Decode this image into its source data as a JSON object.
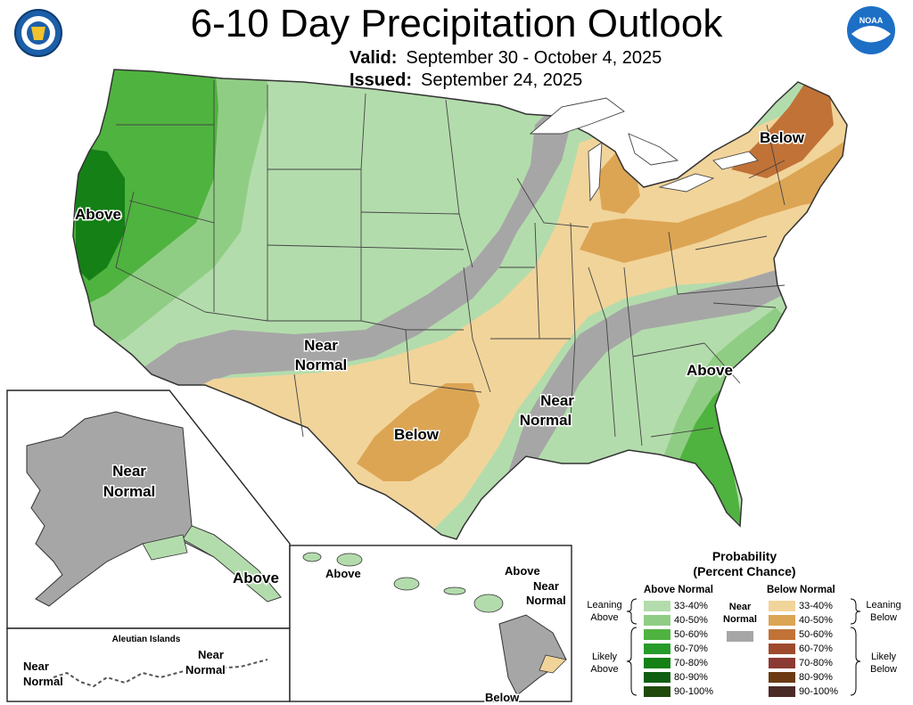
{
  "title": "6-10 Day Precipitation Outlook",
  "valid_label": "Valid:",
  "valid_value": "September 30 - October 4, 2025",
  "issued_label": "Issued:",
  "issued_value": "September 24, 2025",
  "logos": {
    "left": "doc-seal-icon",
    "right": "noaa-logo-icon",
    "noaa_text": "NOAA"
  },
  "regions": {
    "west_coast": "Above",
    "northeast": "Below",
    "southwest_near": [
      "Near",
      "Normal"
    ],
    "texas": "Below",
    "lower_miss_near": [
      "Near",
      "Normal"
    ],
    "southeast": "Above",
    "alaska_near": [
      "Near",
      "Normal"
    ],
    "alaska_se": "Above",
    "aleutian_title": "Aleutian Islands",
    "aleutian_near_left": [
      "Near",
      "Normal"
    ],
    "aleutian_near_right": [
      "Near",
      "Normal"
    ],
    "hawaii_above_w": "Above",
    "hawaii_above_e": "Above",
    "hawaii_near": [
      "Near",
      "Normal"
    ],
    "hawaii_below": "Below"
  },
  "legend": {
    "title_line1": "Probability",
    "title_line2": "(Percent Chance)",
    "above_header": "Above Normal",
    "below_header": "Below Normal",
    "near_label": [
      "Near",
      "Normal"
    ],
    "leaning_above": [
      "Leaning",
      "Above"
    ],
    "likely_above": [
      "Likely",
      "Above"
    ],
    "leaning_below": [
      "Leaning",
      "Below"
    ],
    "likely_below": [
      "Likely",
      "Below"
    ],
    "near_color": "#a6a6a6",
    "above_rows": [
      {
        "label": "33-40%",
        "color": "#b3dcac"
      },
      {
        "label": "40-50%",
        "color": "#90cd84"
      },
      {
        "label": "50-60%",
        "color": "#4fb33f"
      },
      {
        "label": "60-70%",
        "color": "#279b2a"
      },
      {
        "label": "70-80%",
        "color": "#148016"
      },
      {
        "label": "80-90%",
        "color": "#0f5e12"
      },
      {
        "label": "90-100%",
        "color": "#1f4a0a"
      }
    ],
    "below_rows": [
      {
        "label": "33-40%",
        "color": "#f1d49a"
      },
      {
        "label": "40-50%",
        "color": "#dca554"
      },
      {
        "label": "50-60%",
        "color": "#c17237"
      },
      {
        "label": "60-70%",
        "color": "#9e4b2d"
      },
      {
        "label": "70-80%",
        "color": "#8b3a33"
      },
      {
        "label": "80-90%",
        "color": "#6b3a12"
      },
      {
        "label": "90-100%",
        "color": "#4a2a25"
      }
    ]
  }
}
